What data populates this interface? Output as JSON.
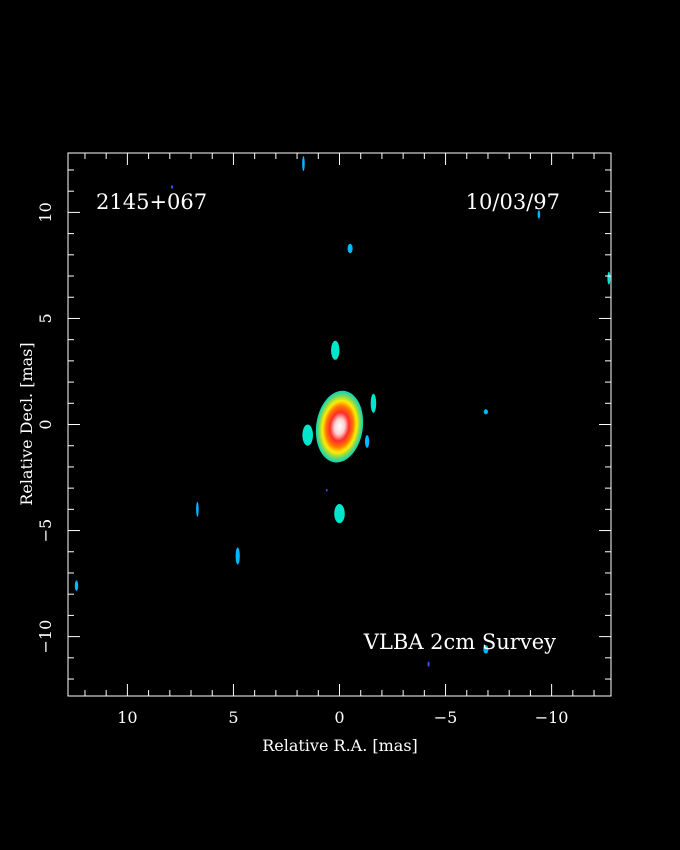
{
  "chart_data": {
    "type": "heatmap",
    "source_name": "2145+067",
    "date": "10/03/97",
    "survey": "VLBA 2cm Survey",
    "xlabel": "Relative R.A. [mas]",
    "ylabel": "Relative Decl. [mas]",
    "xlim": [
      12.8,
      -12.8
    ],
    "ylim": [
      -12.8,
      12.8
    ],
    "x_ticks": [
      10,
      5,
      0,
      -5,
      -10
    ],
    "x_tick_labels": [
      "10",
      "5",
      "0",
      "−5",
      "−10"
    ],
    "y_ticks": [
      10,
      5,
      0,
      -5,
      -10
    ],
    "y_tick_labels": [
      "10",
      "5",
      "0",
      "−5",
      "−10"
    ],
    "x_minor_step": 1,
    "y_minor_step": 1,
    "grid": false,
    "colors": {
      "background": "#000000",
      "frame": "#ffffff",
      "low": "#00b8ff",
      "cyan": "#00e6cc",
      "green": "#7ed957",
      "yellow": "#ffff00",
      "orange": "#ff8c00",
      "red": "#e00000",
      "peak": "#ffffff"
    },
    "core": {
      "x": 0.0,
      "y": -0.1,
      "rx": 1.1,
      "ry": 1.7
    },
    "features": [
      {
        "x": 0.2,
        "y": 3.5,
        "rx": 0.2,
        "ry": 0.45,
        "color": "#00e6cc"
      },
      {
        "x": -0.5,
        "y": 8.3,
        "rx": 0.12,
        "ry": 0.22,
        "color": "#00b8ff"
      },
      {
        "x": 1.7,
        "y": 12.3,
        "rx": 0.06,
        "ry": 0.35,
        "color": "#00b8ff"
      },
      {
        "x": 7.9,
        "y": 11.2,
        "rx": 0.05,
        "ry": 0.08,
        "color": "#3a4cff"
      },
      {
        "x": -1.6,
        "y": 1.0,
        "rx": 0.13,
        "ry": 0.45,
        "color": "#00e6cc"
      },
      {
        "x": -1.3,
        "y": -0.8,
        "rx": 0.1,
        "ry": 0.3,
        "color": "#00b8ff"
      },
      {
        "x": 1.5,
        "y": -0.5,
        "rx": 0.25,
        "ry": 0.5,
        "color": "#00e6cc"
      },
      {
        "x": -6.9,
        "y": 0.6,
        "rx": 0.1,
        "ry": 0.12,
        "color": "#00b8ff"
      },
      {
        "x": -9.4,
        "y": 9.9,
        "rx": 0.06,
        "ry": 0.2,
        "color": "#00b8ff"
      },
      {
        "x": -12.7,
        "y": 6.9,
        "rx": 0.07,
        "ry": 0.3,
        "color": "#00e6cc"
      },
      {
        "x": 0.0,
        "y": -4.2,
        "rx": 0.25,
        "ry": 0.45,
        "color": "#00e6cc"
      },
      {
        "x": 0.6,
        "y": -3.1,
        "rx": 0.04,
        "ry": 0.06,
        "color": "#3a4cff"
      },
      {
        "x": 6.7,
        "y": -4.0,
        "rx": 0.06,
        "ry": 0.35,
        "color": "#00b8ff"
      },
      {
        "x": 4.8,
        "y": -6.2,
        "rx": 0.1,
        "ry": 0.4,
        "color": "#00b8ff"
      },
      {
        "x": 12.4,
        "y": -7.6,
        "rx": 0.08,
        "ry": 0.25,
        "color": "#00b8ff"
      },
      {
        "x": -6.9,
        "y": -10.6,
        "rx": 0.12,
        "ry": 0.2,
        "color": "#00b8ff"
      },
      {
        "x": -4.2,
        "y": -11.3,
        "rx": 0.05,
        "ry": 0.12,
        "color": "#3a4cff"
      }
    ]
  }
}
